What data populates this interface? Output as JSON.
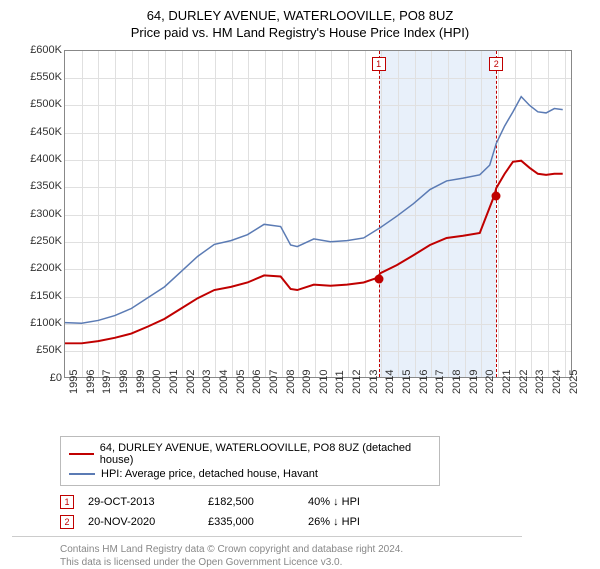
{
  "title_line1": "64, DURLEY AVENUE, WATERLOOVILLE, PO8 8UZ",
  "title_line2": "Price paid vs. HM Land Registry's House Price Index (HPI)",
  "chart": {
    "type": "line",
    "background_color": "#ffffff",
    "grid_color": "#e0e0e0",
    "axis_color": "#888888",
    "shade_color": "#e6eef9",
    "x_start": 1995,
    "x_end": 2025.5,
    "y_min": 0,
    "y_max": 600,
    "y_ticks": [
      0,
      50,
      100,
      150,
      200,
      250,
      300,
      350,
      400,
      450,
      500,
      550,
      600
    ],
    "y_tick_labels": [
      "£0",
      "£50K",
      "£100K",
      "£150K",
      "£200K",
      "£250K",
      "£300K",
      "£350K",
      "£400K",
      "£450K",
      "£500K",
      "£550K",
      "£600K"
    ],
    "x_ticks": [
      1995,
      1996,
      1997,
      1998,
      1999,
      2000,
      2001,
      2002,
      2003,
      2004,
      2005,
      2006,
      2007,
      2008,
      2009,
      2010,
      2011,
      2012,
      2013,
      2014,
      2015,
      2016,
      2017,
      2018,
      2019,
      2020,
      2021,
      2022,
      2023,
      2024,
      2025
    ],
    "shade_start": 2013.83,
    "shade_end": 2020.89,
    "series_red": {
      "color": "#c00000",
      "width": 2,
      "label": "64, DURLEY AVENUE, WATERLOOVILLE, PO8 8UZ (detached house)",
      "points": [
        [
          1995,
          62
        ],
        [
          1996,
          62
        ],
        [
          1997,
          66
        ],
        [
          1998,
          72
        ],
        [
          1999,
          80
        ],
        [
          2000,
          93
        ],
        [
          2001,
          107
        ],
        [
          2002,
          126
        ],
        [
          2003,
          145
        ],
        [
          2004,
          160
        ],
        [
          2005,
          166
        ],
        [
          2006,
          174
        ],
        [
          2007,
          187
        ],
        [
          2008,
          185
        ],
        [
          2008.6,
          162
        ],
        [
          2009,
          160
        ],
        [
          2010,
          170
        ],
        [
          2011,
          168
        ],
        [
          2012,
          170
        ],
        [
          2013,
          174
        ],
        [
          2013.83,
          182.5
        ],
        [
          2014,
          191
        ],
        [
          2015,
          206
        ],
        [
          2016,
          224
        ],
        [
          2017,
          243
        ],
        [
          2018,
          256
        ],
        [
          2019,
          260
        ],
        [
          2020,
          265
        ],
        [
          2020.89,
          335
        ],
        [
          2021,
          348
        ],
        [
          2021.5,
          374
        ],
        [
          2022,
          396
        ],
        [
          2022.5,
          398
        ],
        [
          2023,
          385
        ],
        [
          2023.5,
          374
        ],
        [
          2024,
          372
        ],
        [
          2024.5,
          374
        ],
        [
          2025,
          374
        ]
      ]
    },
    "series_blue": {
      "color": "#5b7bb4",
      "width": 1.5,
      "label": "HPI: Average price, detached house, Havant",
      "points": [
        [
          1995,
          100
        ],
        [
          1996,
          99
        ],
        [
          1997,
          104
        ],
        [
          1998,
          113
        ],
        [
          1999,
          126
        ],
        [
          2000,
          146
        ],
        [
          2001,
          166
        ],
        [
          2002,
          194
        ],
        [
          2003,
          222
        ],
        [
          2004,
          244
        ],
        [
          2005,
          251
        ],
        [
          2006,
          262
        ],
        [
          2007,
          281
        ],
        [
          2008,
          277
        ],
        [
          2008.6,
          243
        ],
        [
          2009,
          240
        ],
        [
          2010,
          254
        ],
        [
          2011,
          249
        ],
        [
          2012,
          251
        ],
        [
          2013,
          256
        ],
        [
          2014,
          275
        ],
        [
          2015,
          296
        ],
        [
          2016,
          319
        ],
        [
          2017,
          345
        ],
        [
          2018,
          361
        ],
        [
          2019,
          366
        ],
        [
          2020,
          372
        ],
        [
          2020.6,
          390
        ],
        [
          2021,
          430
        ],
        [
          2021.5,
          462
        ],
        [
          2022,
          488
        ],
        [
          2022.5,
          516
        ],
        [
          2023,
          500
        ],
        [
          2023.5,
          488
        ],
        [
          2024,
          486
        ],
        [
          2024.5,
          494
        ],
        [
          2025,
          492
        ]
      ]
    },
    "markers": [
      {
        "n": "1",
        "x": 2013.83,
        "y": 182.5
      },
      {
        "n": "2",
        "x": 2020.89,
        "y": 335
      }
    ]
  },
  "sales": [
    {
      "n": "1",
      "date": "29-OCT-2013",
      "price": "£182,500",
      "delta": "40% ↓ HPI"
    },
    {
      "n": "2",
      "date": "20-NOV-2020",
      "price": "£335,000",
      "delta": "26% ↓ HPI"
    }
  ],
  "footer_line1": "Contains HM Land Registry data © Crown copyright and database right 2024.",
  "footer_line2": "This data is licensed under the Open Government Licence v3.0."
}
